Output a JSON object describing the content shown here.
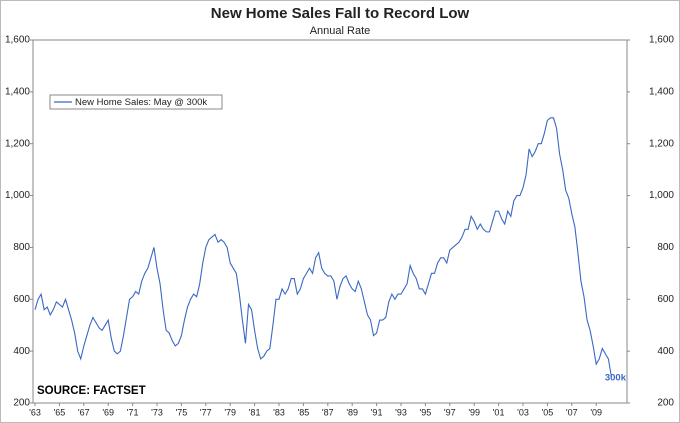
{
  "chart_data": {
    "type": "line",
    "title": "New Home Sales Fall to Record Low",
    "subtitle": "Annual Rate",
    "annotations": [
      "SOURCE: FACTSET",
      "300k"
    ],
    "categories": [
      "'63",
      null,
      null,
      null,
      null,
      null,
      null,
      null,
      "'65",
      null,
      null,
      null,
      null,
      null,
      null,
      null,
      "'67",
      null,
      null,
      null,
      null,
      null,
      null,
      null,
      "'69",
      null,
      null,
      null,
      null,
      null,
      null,
      null,
      "'71",
      null,
      null,
      null,
      null,
      null,
      null,
      null,
      "'73",
      null,
      null,
      null,
      null,
      null,
      null,
      null,
      "'75",
      null,
      null,
      null,
      null,
      null,
      null,
      null,
      "'77",
      null,
      null,
      null,
      null,
      null,
      null,
      null,
      "'79",
      null,
      null,
      null,
      null,
      null,
      null,
      null,
      "'81",
      null,
      null,
      null,
      null,
      null,
      null,
      null,
      "'83",
      null,
      null,
      null,
      null,
      null,
      null,
      null,
      "'85",
      null,
      null,
      null,
      null,
      null,
      null,
      null,
      "'87",
      null,
      null,
      null,
      null,
      null,
      null,
      null,
      "'89",
      null,
      null,
      null,
      null,
      null,
      null,
      null,
      "'91",
      null,
      null,
      null,
      null,
      null,
      null,
      null,
      "'93",
      null,
      null,
      null,
      null,
      null,
      null,
      null,
      "'95",
      null,
      null,
      null,
      null,
      null,
      null,
      null,
      "'97",
      null,
      null,
      null,
      null,
      null,
      null,
      null,
      "'99",
      null,
      null,
      null,
      null,
      null,
      null,
      null,
      "'01",
      null,
      null,
      null,
      null,
      null,
      null,
      null,
      "'03",
      null,
      null,
      null,
      null,
      null,
      null,
      null,
      "'05",
      null,
      null,
      null,
      null,
      null,
      null,
      null,
      "'07",
      null,
      null,
      null,
      null,
      null,
      null,
      null,
      "'09",
      null,
      null,
      null,
      null,
      null
    ],
    "series": [
      {
        "name": "New Home Sales: May @ 300k",
        "color": "#3b68c4",
        "values": [
          560,
          600,
          620,
          560,
          570,
          540,
          560,
          590,
          580,
          570,
          600,
          560,
          520,
          470,
          400,
          370,
          420,
          460,
          500,
          530,
          510,
          490,
          480,
          500,
          520,
          450,
          400,
          390,
          400,
          460,
          530,
          600,
          610,
          630,
          620,
          670,
          700,
          720,
          760,
          800,
          720,
          660,
          560,
          480,
          470,
          440,
          420,
          430,
          460,
          520,
          570,
          600,
          620,
          610,
          660,
          740,
          800,
          830,
          840,
          850,
          820,
          830,
          820,
          800,
          740,
          720,
          700,
          620,
          520,
          430,
          580,
          560,
          480,
          410,
          370,
          380,
          400,
          410,
          500,
          600,
          600,
          640,
          620,
          640,
          680,
          680,
          620,
          640,
          680,
          700,
          720,
          700,
          760,
          780,
          720,
          700,
          690,
          690,
          670,
          600,
          650,
          680,
          690,
          660,
          640,
          630,
          670,
          640,
          590,
          540,
          520,
          460,
          470,
          520,
          520,
          530,
          590,
          620,
          600,
          620,
          620,
          640,
          660,
          730,
          700,
          680,
          640,
          640,
          620,
          660,
          700,
          700,
          740,
          760,
          760,
          740,
          790,
          800,
          810,
          820,
          840,
          870,
          870,
          920,
          900,
          870,
          890,
          870,
          860,
          860,
          900,
          940,
          940,
          910,
          890,
          940,
          920,
          980,
          1000,
          1000,
          1030,
          1080,
          1180,
          1150,
          1170,
          1200,
          1200,
          1240,
          1290,
          1300,
          1300,
          1260,
          1160,
          1100,
          1020,
          990,
          930,
          880,
          780,
          670,
          610,
          520,
          480,
          420,
          350,
          370,
          410,
          390,
          370,
          300
        ]
      }
    ],
    "ylim": [
      200,
      1600
    ],
    "yticks": [
      200,
      400,
      600,
      800,
      {
        "value": 1000,
        "label": "1,000"
      },
      {
        "value": 1200,
        "label": "1,200"
      },
      {
        "value": 1400,
        "label": "1,400"
      },
      {
        "value": 1600,
        "label": "1,600"
      }
    ],
    "y2lim": [
      200,
      1600
    ],
    "y2ticks": [
      200,
      400,
      600,
      800,
      {
        "value": 1000,
        "label": "1,000"
      },
      {
        "value": 1200,
        "label": "1,200"
      },
      {
        "value": 1400,
        "label": "1,400"
      },
      {
        "value": 1600,
        "label": "1,600"
      }
    ],
    "legend": "top-left"
  }
}
